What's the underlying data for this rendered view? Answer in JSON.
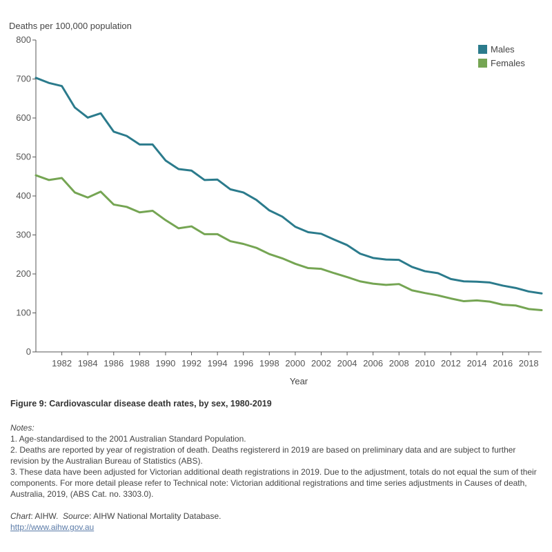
{
  "chart_data": {
    "type": "line",
    "ylabel": "Deaths per 100,000 population",
    "xlabel": "Year",
    "ylim": [
      0,
      800
    ],
    "xlim": [
      1980,
      2019
    ],
    "yticks": [
      "0",
      "100",
      "200",
      "300",
      "400",
      "500",
      "600",
      "700",
      "800"
    ],
    "xticks": [
      "1982",
      "1984",
      "1986",
      "1988",
      "1990",
      "1992",
      "1994",
      "1996",
      "1998",
      "2000",
      "2002",
      "2004",
      "2006",
      "2008",
      "2010",
      "2012",
      "2014",
      "2016",
      "2018"
    ],
    "legend_position": "top-right",
    "x": [
      1980,
      1981,
      1982,
      1983,
      1984,
      1985,
      1986,
      1987,
      1988,
      1989,
      1990,
      1991,
      1992,
      1993,
      1994,
      1995,
      1996,
      1997,
      1998,
      1999,
      2000,
      2001,
      2002,
      2003,
      2004,
      2005,
      2006,
      2007,
      2008,
      2009,
      2010,
      2011,
      2012,
      2013,
      2014,
      2015,
      2016,
      2017,
      2018,
      2019
    ],
    "series": [
      {
        "name": "Males",
        "color": "#2b7b8c",
        "values": [
          703,
          690,
          682,
          627,
          601,
          612,
          565,
          554,
          532,
          532,
          491,
          469,
          465,
          441,
          442,
          417,
          409,
          390,
          363,
          347,
          321,
          307,
          303,
          288,
          274,
          252,
          241,
          237,
          236,
          218,
          207,
          202,
          187,
          181,
          180,
          178,
          170,
          164,
          155,
          150
        ]
      },
      {
        "name": "Females",
        "color": "#75a553",
        "values": [
          453,
          441,
          446,
          409,
          396,
          411,
          378,
          372,
          358,
          362,
          338,
          317,
          322,
          302,
          302,
          284,
          277,
          267,
          251,
          240,
          226,
          215,
          213,
          202,
          192,
          181,
          175,
          172,
          174,
          158,
          151,
          145,
          137,
          130,
          132,
          129,
          121,
          119,
          110,
          107
        ]
      }
    ]
  },
  "figure_title": "Figure 9: Cardiovascular disease death rates, by sex, 1980-2019",
  "notes": {
    "heading": "Notes:",
    "items": [
      "1. Age-standardised to the 2001 Australian Standard Population.",
      "2. Deaths are reported by year of registration of death. Deaths registererd in 2019 are based on preliminary data and are subject to further revision by the Australian Bureau of Statistics (ABS).",
      "3. These data have been adjusted for Victorian additional death registrations in 2019. Due to the adjustment, totals do not equal the sum of their components. For more detail please refer to Technical note: Victorian additional registrations and time series adjustments in Causes of death, Australia, 2019, (ABS Cat. no. 3303.0)."
    ]
  },
  "source": {
    "chart_label": "Chart",
    "chart_value": ": AIHW.",
    "source_label": "Source",
    "source_value": ": AIHW National Mortality Database."
  },
  "link": "http://www.aihw.gov.au"
}
